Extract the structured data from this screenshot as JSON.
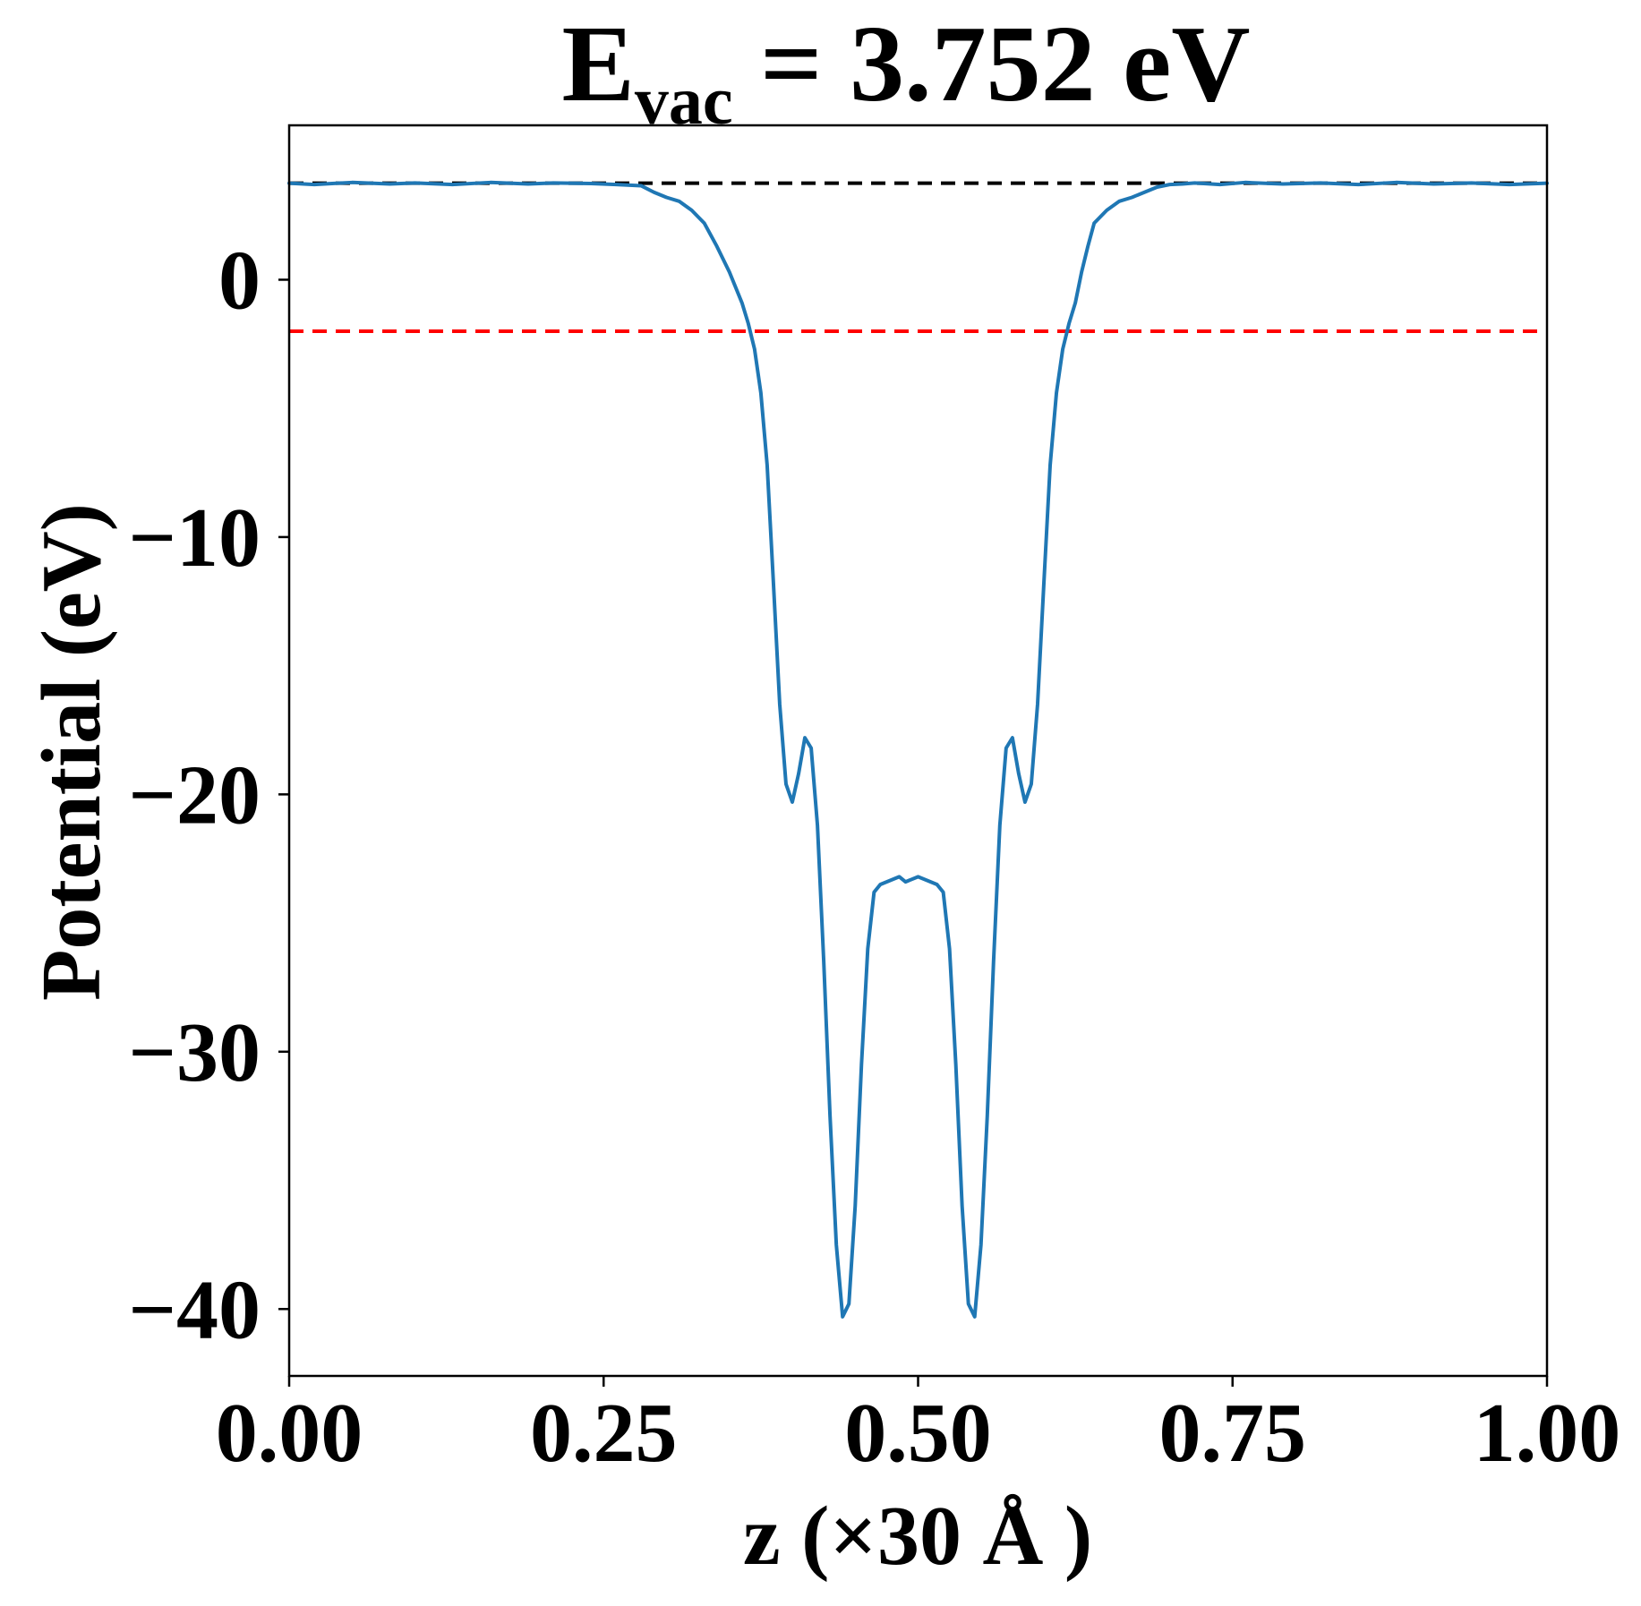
{
  "chart_data": {
    "type": "line",
    "title": {
      "main": "E",
      "subscript": "vac",
      "rest": " = 3.752 eV"
    },
    "xlabel": "z (×30 Å )",
    "ylabel": "Potential (eV)",
    "xlim": [
      0.0,
      1.0
    ],
    "ylim": [
      -42.6,
      6.0
    ],
    "xticks": [
      0.0,
      0.25,
      0.5,
      0.75,
      1.0
    ],
    "xtick_labels": [
      "0.00",
      "0.25",
      "0.50",
      "0.75",
      "1.00"
    ],
    "yticks": [
      0,
      -10,
      -20,
      -30,
      -40
    ],
    "ytick_labels": [
      "0",
      "−10",
      "−20",
      "−30",
      "−40"
    ],
    "grid": false,
    "legend": "none",
    "colors": {
      "series": "#1f77b4",
      "vacuum_line": "#000000",
      "fermi_line": "#ff0000",
      "axes": "#000000"
    },
    "reference_lines": [
      {
        "y": 3.752,
        "color": "#000000",
        "style": "dashed",
        "x_range": [
          0.0,
          1.0
        ]
      },
      {
        "y": -2.0,
        "color": "#ff0000",
        "style": "dashed",
        "x_range": [
          0.0,
          1.0
        ]
      }
    ],
    "series": [
      {
        "x": [
          0.0,
          0.02,
          0.05,
          0.08,
          0.1,
          0.13,
          0.16,
          0.19,
          0.21,
          0.24,
          0.26,
          0.28,
          0.29,
          0.3,
          0.31,
          0.32,
          0.33,
          0.34,
          0.35,
          0.36,
          0.365,
          0.37,
          0.375,
          0.38,
          0.385,
          0.39,
          0.395,
          0.4,
          0.405,
          0.41,
          0.415,
          0.42,
          0.425,
          0.43,
          0.435,
          0.44,
          0.445,
          0.45,
          0.455,
          0.46,
          0.465,
          0.47,
          0.475,
          0.48,
          0.485,
          0.49,
          0.5,
          0.51,
          0.515,
          0.52,
          0.525,
          0.53,
          0.535,
          0.54,
          0.545,
          0.55,
          0.555,
          0.56,
          0.565,
          0.57,
          0.575,
          0.58,
          0.585,
          0.59,
          0.595,
          0.6,
          0.605,
          0.61,
          0.615,
          0.62,
          0.625,
          0.63,
          0.635,
          0.64,
          0.65,
          0.66,
          0.67,
          0.68,
          0.69,
          0.7,
          0.71,
          0.72,
          0.74,
          0.76,
          0.79,
          0.82,
          0.85,
          0.88,
          0.91,
          0.94,
          0.97,
          1.0
        ],
        "y": [
          3.75,
          3.7,
          3.78,
          3.72,
          3.76,
          3.7,
          3.78,
          3.72,
          3.76,
          3.74,
          3.7,
          3.65,
          3.4,
          3.2,
          3.05,
          2.7,
          2.2,
          1.3,
          0.3,
          -0.9,
          -1.7,
          -2.7,
          -4.4,
          -7.2,
          -11.8,
          -16.5,
          -19.6,
          -20.3,
          -19.2,
          -17.8,
          -18.2,
          -21.2,
          -26.5,
          -32.5,
          -37.5,
          -40.3,
          -39.8,
          -36.0,
          -30.5,
          -26.0,
          -23.8,
          -23.5,
          -23.4,
          -23.3,
          -23.2,
          -23.4,
          -23.2,
          -23.4,
          -23.5,
          -23.8,
          -26.0,
          -30.5,
          -36.0,
          -39.8,
          -40.3,
          -37.5,
          -32.5,
          -26.5,
          -21.2,
          -18.2,
          -17.8,
          -19.2,
          -20.3,
          -19.6,
          -16.5,
          -11.8,
          -7.2,
          -4.4,
          -2.7,
          -1.7,
          -0.9,
          0.3,
          1.3,
          2.2,
          2.7,
          3.05,
          3.2,
          3.4,
          3.6,
          3.7,
          3.72,
          3.76,
          3.7,
          3.78,
          3.72,
          3.76,
          3.7,
          3.78,
          3.72,
          3.76,
          3.7,
          3.75
        ]
      }
    ]
  }
}
